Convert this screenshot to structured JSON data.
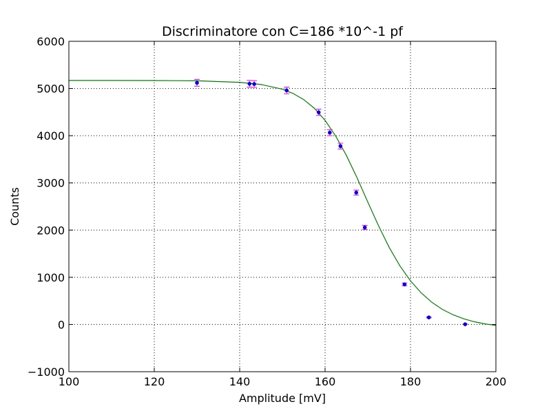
{
  "chart_data": {
    "type": "scatter",
    "title": "Discriminatore con C=186 *10^-1 pf",
    "xlabel": "Amplitude [mV]",
    "ylabel": "Counts",
    "xlim": [
      100,
      200
    ],
    "ylim": [
      -1000,
      6000
    ],
    "xticks": [
      100,
      120,
      140,
      160,
      180,
      200
    ],
    "yticks": [
      -1000,
      0,
      1000,
      2000,
      3000,
      4000,
      5000,
      6000
    ],
    "xtick_labels": [
      "100",
      "120",
      "140",
      "160",
      "180",
      "200"
    ],
    "ytick_labels": [
      "−1000",
      "0",
      "1000",
      "2000",
      "3000",
      "4000",
      "5000",
      "6000"
    ],
    "grid": true,
    "points": [
      {
        "x": 130.0,
        "y": 5120,
        "err": 72
      },
      {
        "x": 142.3,
        "y": 5100,
        "err": 71
      },
      {
        "x": 143.4,
        "y": 5095,
        "err": 71
      },
      {
        "x": 151.0,
        "y": 4960,
        "err": 70
      },
      {
        "x": 158.5,
        "y": 4495,
        "err": 67
      },
      {
        "x": 161.1,
        "y": 4065,
        "err": 64
      },
      {
        "x": 163.6,
        "y": 3780,
        "err": 61
      },
      {
        "x": 167.3,
        "y": 2795,
        "err": 53
      },
      {
        "x": 169.3,
        "y": 2055,
        "err": 45
      },
      {
        "x": 178.6,
        "y": 850,
        "err": 29
      },
      {
        "x": 184.3,
        "y": 150,
        "err": 12
      },
      {
        "x": 192.8,
        "y": 5,
        "err": 2
      }
    ],
    "fit": {
      "x": [
        100,
        110,
        120,
        130,
        140,
        145,
        150,
        152.5,
        155,
        157.5,
        160,
        162.5,
        165,
        167.5,
        170,
        172.5,
        175,
        177.5,
        180,
        182.5,
        185,
        187.5,
        190,
        192.5,
        195,
        197.5,
        200
      ],
      "y": [
        5170,
        5170,
        5169,
        5163,
        5130,
        5085,
        4985,
        4895,
        4765,
        4580,
        4325,
        3990,
        3580,
        3105,
        2595,
        2095,
        1635,
        1245,
        925,
        670,
        470,
        318,
        205,
        120,
        57,
        12,
        -20
      ]
    },
    "colors": {
      "points": "#0000ff",
      "errorbars": "#ff00ff",
      "fit": "#008000",
      "grid": "#000000"
    }
  }
}
